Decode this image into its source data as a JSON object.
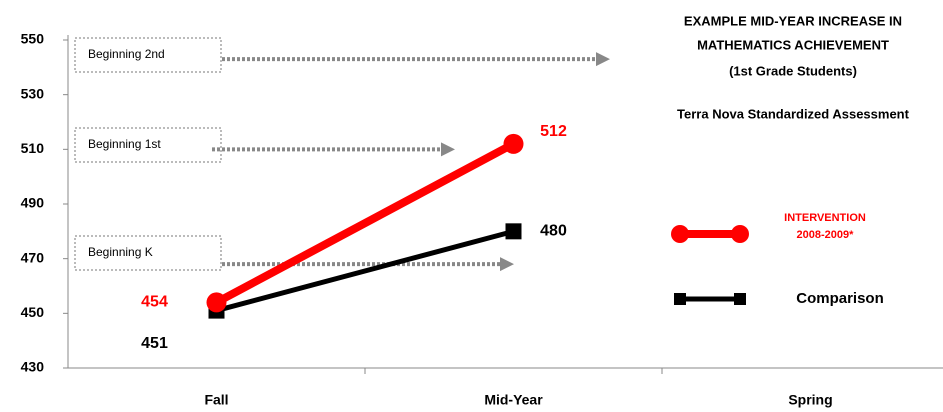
{
  "chart_data": {
    "type": "line",
    "title": [
      "EXAMPLE  MID-YEAR INCREASE IN",
      "MATHEMATICS ACHIEVEMENT",
      "(1st Grade Students)"
    ],
    "subtitle": "Terra Nova Standardized Assessment",
    "categories": [
      "Fall",
      "Mid-Year",
      "Spring"
    ],
    "series": [
      {
        "name": "INTERVENTION 2008-2009*",
        "color": "#ff0000",
        "marker": "circle",
        "values": [
          454,
          512,
          null
        ]
      },
      {
        "name": "Comparison",
        "color": "#000000",
        "marker": "square",
        "values": [
          451,
          480,
          null
        ]
      }
    ],
    "ylim": [
      430,
      550
    ],
    "yticks": [
      430,
      450,
      470,
      490,
      510,
      530,
      550
    ],
    "annotations": [
      {
        "text": "Beginning 2nd",
        "y": 543
      },
      {
        "text": "Beginning 1st",
        "y": 510
      },
      {
        "text": "Beginning K",
        "y": 468
      }
    ]
  }
}
